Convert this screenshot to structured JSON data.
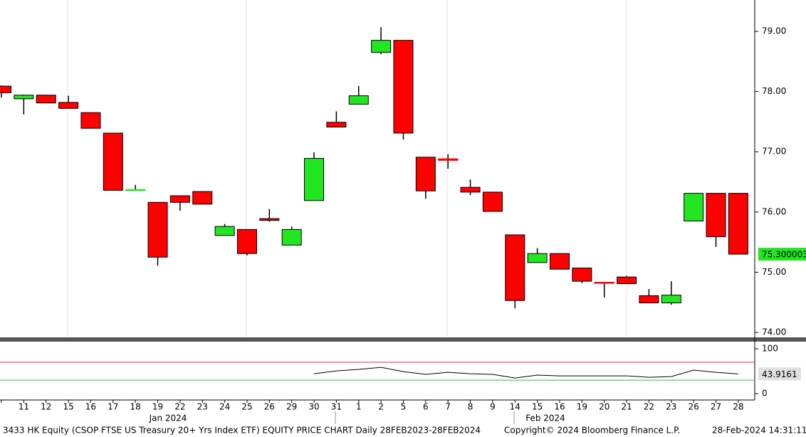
{
  "chart_data": [
    {
      "type": "candlestick",
      "categories": [
        null,
        "11",
        "12",
        "15",
        "16",
        "17",
        "18",
        "19",
        "22",
        "23",
        "24",
        "25",
        "26",
        "29",
        "30",
        "31",
        "1",
        "2",
        "5",
        "6",
        "7",
        "8",
        "9",
        "14",
        "15",
        "16",
        "19",
        "20",
        "21",
        "22",
        "23",
        "26",
        "27",
        "28"
      ],
      "open": [
        78.09,
        77.88,
        77.94,
        77.82,
        77.65,
        77.31,
        76.36,
        76.16,
        76.27,
        76.34,
        75.61,
        75.71,
        75.89,
        75.45,
        76.19,
        77.49,
        77.79,
        78.65,
        78.85,
        76.91,
        76.88,
        76.41,
        76.33,
        75.62,
        75.16,
        75.31,
        75.07,
        74.83,
        74.92,
        74.61,
        74.49,
        75.85,
        76.31,
        76.31
      ],
      "high": [
        78.1,
        77.95,
        77.94,
        77.93,
        77.65,
        77.31,
        76.45,
        76.16,
        76.27,
        76.34,
        75.8,
        75.71,
        76.05,
        75.76,
        76.99,
        77.67,
        78.09,
        79.07,
        78.85,
        76.91,
        76.96,
        76.54,
        76.33,
        75.62,
        75.4,
        75.31,
        75.07,
        74.83,
        74.94,
        74.72,
        74.85,
        76.31,
        76.31,
        76.31
      ],
      "low": [
        77.9,
        77.62,
        77.81,
        77.72,
        77.39,
        76.36,
        76.36,
        75.11,
        76.02,
        76.13,
        75.61,
        75.28,
        75.84,
        75.45,
        76.19,
        77.41,
        77.79,
        78.62,
        77.2,
        76.22,
        76.72,
        76.28,
        76.01,
        74.4,
        75.16,
        75.05,
        74.82,
        74.58,
        74.81,
        74.49,
        74.46,
        75.85,
        75.42,
        75.3
      ],
      "close": [
        77.98,
        77.94,
        77.81,
        77.72,
        77.39,
        76.36,
        76.37,
        75.25,
        76.16,
        76.13,
        75.76,
        75.31,
        75.86,
        75.71,
        76.89,
        77.41,
        77.93,
        78.85,
        77.31,
        76.35,
        76.86,
        76.33,
        76.01,
        74.53,
        75.31,
        75.05,
        74.85,
        74.82,
        74.81,
        74.49,
        74.62,
        76.31,
        75.59,
        75.3
      ],
      "last_value": 75.300003,
      "last_label": "75.300003",
      "up_color": "#22e622",
      "down_color": "#ff0000",
      "ylim": [
        73.93,
        79.52
      ],
      "yticks": [
        {
          "value": 74,
          "label": "74.00"
        },
        {
          "value": 75,
          "label": "75.00"
        },
        {
          "value": 76,
          "label": "76.00"
        },
        {
          "value": 77,
          "label": "77.00"
        },
        {
          "value": 78,
          "label": "78.00"
        },
        {
          "value": 79,
          "label": "79.00"
        }
      ],
      "months": [
        "Jan 2024",
        "Feb 2024"
      ],
      "footer": {
        "title": "3433 HK Equity (CSOP FTSE US Treasury 20+ Yrs Index ETF) EQUITY PRICE CHART  Daily 28FEB2023-28FEB2024",
        "copyright": "Copyright© 2024 Bloomberg Finance L.P.",
        "timestamp": "28-Feb-2024 14:31:11"
      }
    },
    {
      "type": "line",
      "series": [
        {
          "color": "#000000",
          "values": [
            null,
            null,
            null,
            null,
            null,
            null,
            null,
            null,
            null,
            null,
            null,
            null,
            null,
            null,
            44.4,
            50.8,
            54.0,
            58.7,
            49.2,
            42.9,
            47.6,
            44.4,
            42.9,
            34.9,
            41.3,
            39.7,
            39.7,
            39.7,
            39.7,
            36.5,
            38.1,
            52.4,
            47.6,
            43.9161
          ]
        }
      ],
      "last_label": "43.9161",
      "reference_lines": [
        {
          "value": 70,
          "color": "#e03030"
        },
        {
          "value": 30,
          "color": "#30c030"
        }
      ],
      "ylim": [
        -11,
        116
      ],
      "yticks": [
        0,
        100
      ]
    }
  ]
}
